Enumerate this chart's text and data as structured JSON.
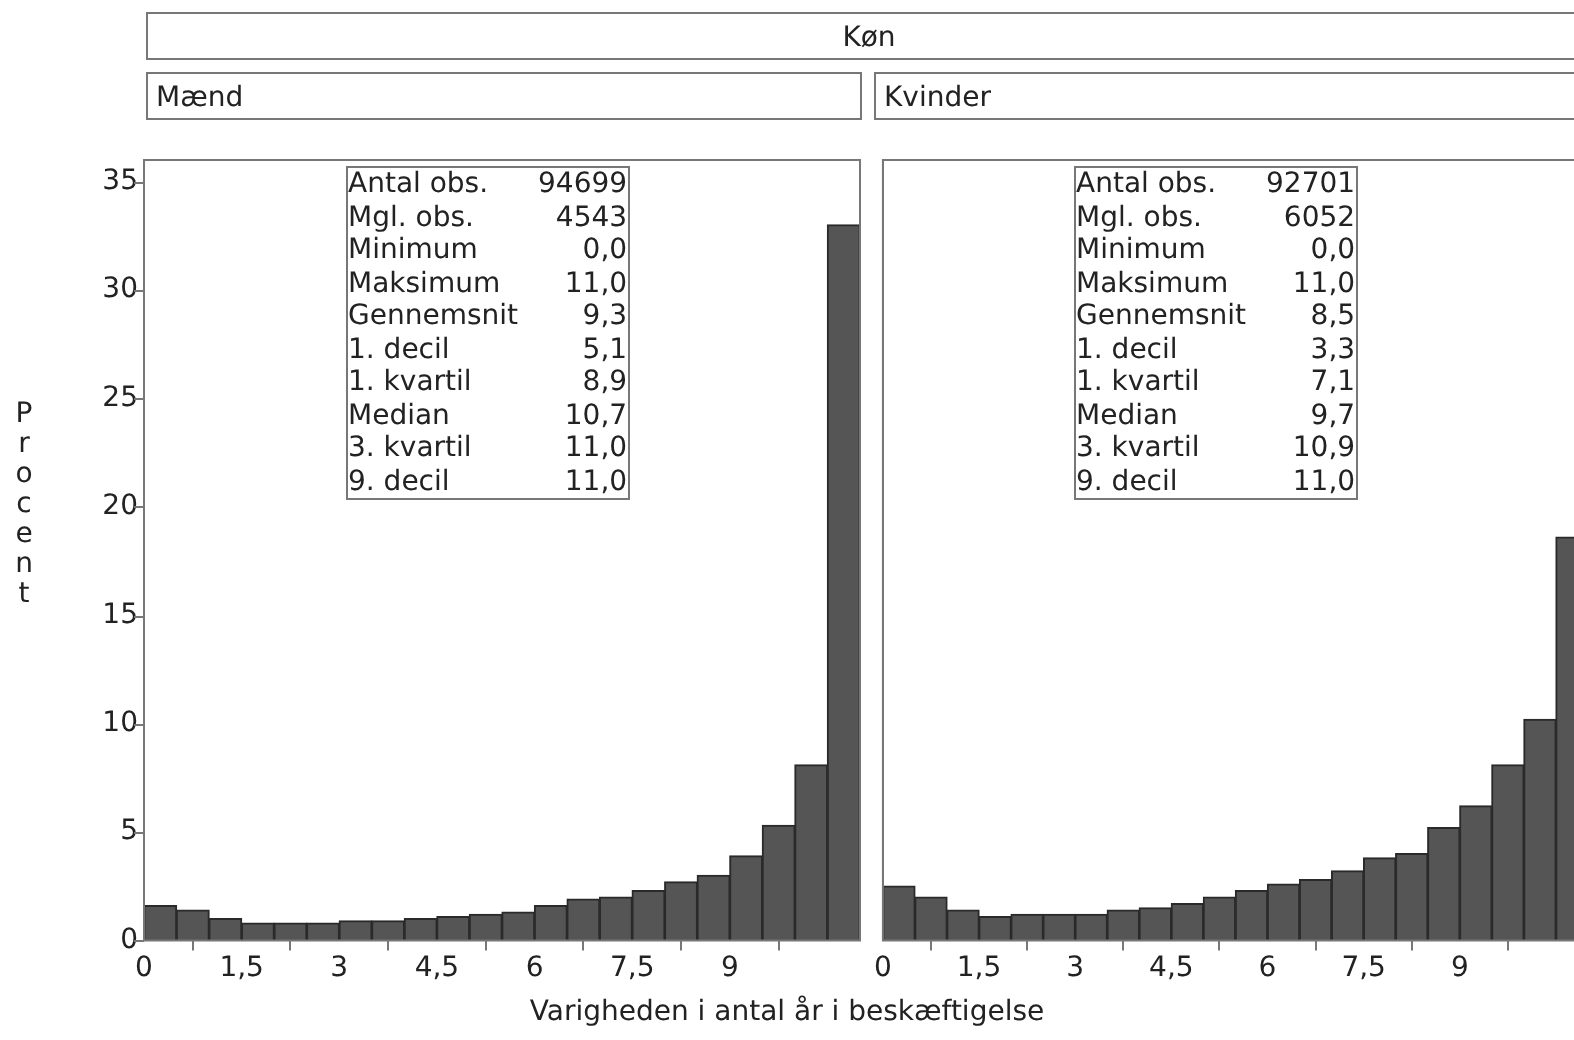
{
  "chart_data": [
    {
      "type": "histogram",
      "title": "Køn",
      "subtitle": "Mænd",
      "xlabel": "Varigheden i antal år i beskæftigelse",
      "ylabel": "Procent",
      "color": "#555555",
      "bins": [
        0,
        0.5,
        1,
        1.5,
        2,
        2.5,
        3,
        3.5,
        4,
        4.5,
        5,
        5.5,
        6,
        6.5,
        7,
        7.5,
        8,
        8.5,
        9,
        9.5,
        10,
        10.5,
        11
      ],
      "values": [
        1.6,
        1.4,
        1.0,
        0.8,
        0.8,
        0.8,
        0.9,
        0.9,
        1.0,
        1.1,
        1.2,
        1.3,
        1.6,
        1.9,
        2.0,
        2.3,
        2.7,
        3.0,
        3.9,
        5.3,
        8.1,
        33.0
      ],
      "xlim": [
        0,
        11
      ],
      "xticks": [
        0,
        {
          "value": 1.5,
          "label": "1,5"
        },
        3,
        {
          "value": 4.5,
          "label": "4,5"
        },
        6,
        {
          "value": 7.5,
          "label": "7,5"
        },
        9
      ],
      "ylim": [
        0,
        36
      ],
      "yticks": [
        0,
        5,
        10,
        15,
        20,
        25,
        30,
        35
      ],
      "grid": false,
      "annotations": [
        "Antal obs. 94699",
        "Mgl. obs. 4543",
        "Minimum 0,0",
        "Maksimum 11,0",
        "Gennemsnit 9,3",
        "1. decil 5,1",
        "1. kvartil 8,9",
        "Median 10,7",
        "3. kvartil 11,0",
        "9. decil 11,0"
      ]
    },
    {
      "type": "histogram",
      "subtitle": "Kvinder",
      "color": "#555555",
      "bins": [
        0,
        0.5,
        1,
        1.5,
        2,
        2.5,
        3,
        3.5,
        4,
        4.5,
        5,
        5.5,
        6,
        6.5,
        7,
        7.5,
        8,
        8.5,
        9,
        9.5,
        10,
        10.5,
        11
      ],
      "values": [
        2.5,
        2.0,
        1.4,
        1.1,
        1.2,
        1.2,
        1.2,
        1.4,
        1.5,
        1.7,
        2.0,
        2.3,
        2.6,
        2.8,
        3.2,
        3.8,
        4.0,
        5.2,
        6.2,
        8.1,
        10.2,
        18.6
      ],
      "xlim": [
        0,
        11
      ],
      "xticks": [
        0,
        {
          "value": 1.5,
          "label": "1,5"
        },
        3,
        {
          "value": 4.5,
          "label": "4,5"
        },
        6,
        {
          "value": 7.5,
          "label": "7,5"
        },
        9
      ],
      "ylim": [
        0,
        36
      ],
      "yticks": [
        0,
        5,
        10,
        15,
        20,
        25,
        30,
        35
      ],
      "grid": false,
      "tick_labels": "x",
      "annotations": [
        "Antal obs. 92701",
        "Mgl. obs. 6052",
        "Minimum 0,0",
        "Maksimum 11,0",
        "Gennemsnit 8,5",
        "1. decil 3,3",
        "1. kvartil 7,1",
        "Median 9,7",
        "3. kvartil 10,9",
        "9. decil 11,0"
      ]
    }
  ]
}
